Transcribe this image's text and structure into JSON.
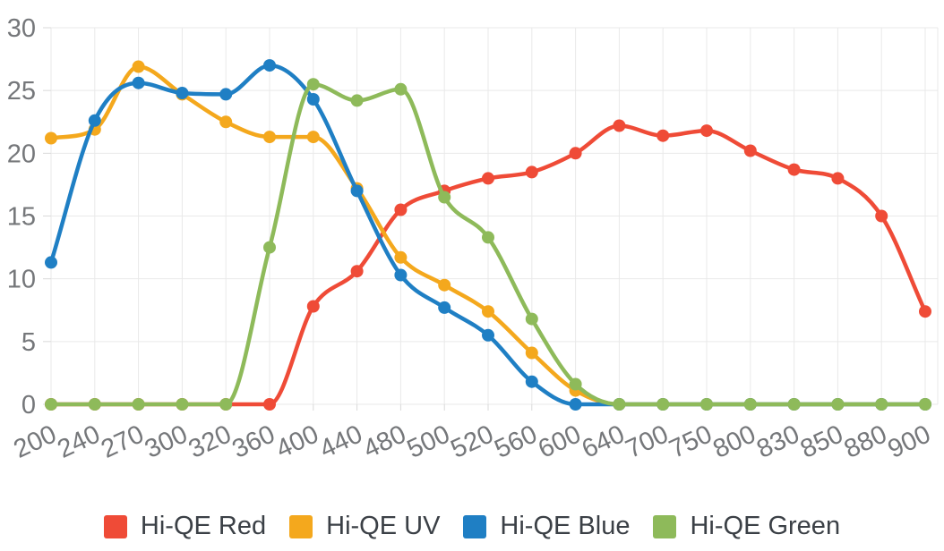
{
  "chart_data": {
    "type": "line",
    "title": "",
    "xlabel": "",
    "ylabel": "",
    "categories": [
      200,
      240,
      270,
      300,
      320,
      360,
      400,
      440,
      480,
      500,
      520,
      560,
      600,
      640,
      700,
      750,
      800,
      830,
      850,
      880,
      900
    ],
    "series": [
      {
        "name": "Hi-QE Red",
        "color": "#ef4b37",
        "values": [
          0,
          0,
          0,
          0,
          0,
          0,
          7.8,
          10.6,
          15.5,
          17.0,
          18.0,
          18.5,
          20.0,
          22.2,
          21.4,
          21.8,
          20.2,
          18.7,
          18.0,
          15.0,
          7.4
        ]
      },
      {
        "name": "Hi-QE UV",
        "color": "#f4a81d",
        "values": [
          21.2,
          21.9,
          26.9,
          24.7,
          22.5,
          21.3,
          21.3,
          17.2,
          11.7,
          9.5,
          7.4,
          4.1,
          1.1,
          0,
          0,
          0,
          0,
          0,
          0,
          0,
          0
        ]
      },
      {
        "name": "Hi-QE Blue",
        "color": "#1f7fc4",
        "values": [
          11.3,
          22.6,
          25.6,
          24.8,
          24.7,
          27.0,
          24.3,
          17.0,
          10.3,
          7.7,
          5.5,
          1.8,
          0,
          0,
          0,
          0,
          0,
          0,
          0,
          0,
          0
        ]
      },
      {
        "name": "Hi-QE Green",
        "color": "#8eba5a",
        "values": [
          0,
          0,
          0,
          0,
          0,
          12.5,
          25.5,
          24.2,
          25.1,
          16.5,
          13.3,
          6.8,
          1.6,
          0,
          0,
          0,
          0,
          0,
          0,
          0,
          0
        ]
      }
    ],
    "y_ticks": [
      0,
      5,
      10,
      15,
      20,
      25,
      30
    ],
    "ylim": [
      0,
      30
    ],
    "grid": true,
    "curve": "monotone",
    "point_style": "circle",
    "legend_position": "bottom"
  },
  "style_colors": {
    "background": "#ffffff",
    "gridline": "#e9e9e9",
    "tick_stub": "#d9d9d9",
    "tick_text": "#75777a",
    "legend_text": "#3b4046"
  }
}
